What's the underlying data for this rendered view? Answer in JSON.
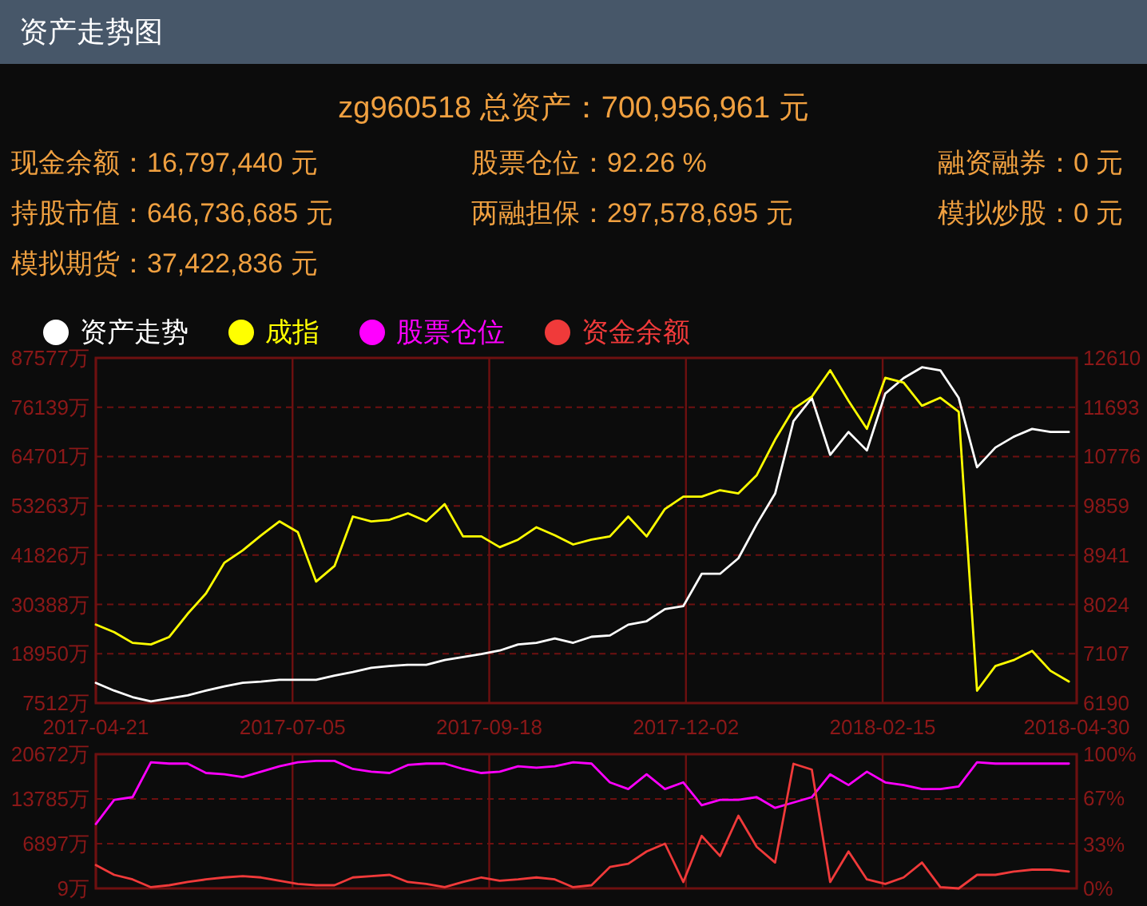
{
  "chart_data": [
    {
      "type": "other",
      "title": "资产走势图",
      "subtitle": "zg960518 总资产：700,956,961 元",
      "annotations": [
        "现金余额：16,797,440 元",
        "股票仓位：92.26 %",
        "融资融券：0 元",
        "持股市值：646,736,685 元",
        "两融担保：297,578,695 元",
        "模拟炒股：0 元",
        "模拟期货：37,422,836 元"
      ]
    },
    {
      "type": "line",
      "legend": "top left",
      "grid": true,
      "x": [
        "2017-04-21",
        "2017-04-28",
        "2017-05-05",
        "2017-05-12",
        "2017-05-19",
        "2017-05-26",
        "2017-06-02",
        "2017-06-09",
        "2017-06-16",
        "2017-06-23",
        "2017-06-30",
        "2017-07-07",
        "2017-07-14",
        "2017-07-21",
        "2017-07-28",
        "2017-08-04",
        "2017-08-11",
        "2017-08-18",
        "2017-08-25",
        "2017-09-01",
        "2017-09-08",
        "2017-09-15",
        "2017-09-22",
        "2017-09-29",
        "2017-10-06",
        "2017-10-13",
        "2017-10-20",
        "2017-10-27",
        "2017-11-03",
        "2017-11-10",
        "2017-11-17",
        "2017-11-24",
        "2017-12-01",
        "2017-12-08",
        "2017-12-15",
        "2017-12-22",
        "2017-12-29",
        "2018-01-05",
        "2018-01-12",
        "2018-01-19",
        "2018-01-26",
        "2018-02-02",
        "2018-02-09",
        "2018-02-16",
        "2018-02-23",
        "2018-03-02",
        "2018-03-09",
        "2018-03-16",
        "2018-03-23",
        "2018-03-30",
        "2018-04-06",
        "2018-04-13",
        "2018-04-20",
        "2018-04-27"
      ],
      "xlim": [
        "2017-04-21",
        "2018-04-30"
      ],
      "xticks": [
        "2017-04-21",
        "2017-07-05",
        "2017-09-18",
        "2017-12-02",
        "2018-02-15",
        "2018-04-30"
      ],
      "ylim": [
        7512,
        87577
      ],
      "yticks": [
        {
          "value": 7512,
          "label": "7512万"
        },
        {
          "value": 18950,
          "label": "18950万"
        },
        {
          "value": 30388,
          "label": "30388万"
        },
        {
          "value": 41826,
          "label": "41826万"
        },
        {
          "value": 53263,
          "label": "53263万"
        },
        {
          "value": 64701,
          "label": "64701万"
        },
        {
          "value": 76139,
          "label": "76139万"
        },
        {
          "value": 87577,
          "label": "87577万"
        }
      ],
      "y2lim": [
        6190,
        12610
      ],
      "y2ticks": [
        6190,
        7107,
        8024,
        8941,
        9859,
        10776,
        11693,
        12610
      ],
      "series": [
        {
          "name": "资产走势",
          "color": "#ffffff",
          "values": [
            12200,
            10400,
            8900,
            7900,
            8600,
            9300,
            10400,
            11400,
            12200,
            12500,
            12900,
            12900,
            12900,
            13900,
            14700,
            15700,
            16100,
            16400,
            16400,
            17500,
            18200,
            18900,
            19700,
            21100,
            21500,
            22500,
            21500,
            22900,
            23200,
            25700,
            26500,
            29300,
            30000,
            37500,
            37500,
            41100,
            49000,
            56100,
            72900,
            78300,
            65100,
            70400,
            66100,
            79300,
            82900,
            85400,
            84700,
            78300,
            62200,
            66800,
            69300,
            71100,
            70400,
            70400
          ]
        },
        {
          "name": "成指",
          "color": "#ffff00",
          "axis": "y2",
          "values": [
            7650,
            7510,
            7310,
            7280,
            7420,
            7850,
            8230,
            8800,
            9030,
            9310,
            9570,
            9370,
            8450,
            8740,
            9660,
            9570,
            9600,
            9720,
            9570,
            9890,
            9290,
            9290,
            9090,
            9230,
            9460,
            9310,
            9140,
            9230,
            9290,
            9660,
            9290,
            9800,
            10030,
            10030,
            10150,
            10090,
            10430,
            11090,
            11660,
            11890,
            12380,
            11810,
            11290,
            12240,
            12150,
            11720,
            11870,
            11610,
            6420,
            6880,
            6990,
            7160,
            6790,
            6590
          ]
        }
      ]
    },
    {
      "type": "line",
      "legend": "top left",
      "grid": true,
      "tick_labels": "y",
      "x": [
        "2017-04-21",
        "2017-04-28",
        "2017-05-05",
        "2017-05-12",
        "2017-05-19",
        "2017-05-26",
        "2017-06-02",
        "2017-06-09",
        "2017-06-16",
        "2017-06-23",
        "2017-06-30",
        "2017-07-07",
        "2017-07-14",
        "2017-07-21",
        "2017-07-28",
        "2017-08-04",
        "2017-08-11",
        "2017-08-18",
        "2017-08-25",
        "2017-09-01",
        "2017-09-08",
        "2017-09-15",
        "2017-09-22",
        "2017-09-29",
        "2017-10-06",
        "2017-10-13",
        "2017-10-20",
        "2017-10-27",
        "2017-11-03",
        "2017-11-10",
        "2017-11-17",
        "2017-11-24",
        "2017-12-01",
        "2017-12-08",
        "2017-12-15",
        "2017-12-22",
        "2017-12-29",
        "2018-01-05",
        "2018-01-12",
        "2018-01-19",
        "2018-01-26",
        "2018-02-02",
        "2018-02-09",
        "2018-02-16",
        "2018-02-23",
        "2018-03-02",
        "2018-03-09",
        "2018-03-16",
        "2018-03-23",
        "2018-03-30",
        "2018-04-06",
        "2018-04-13",
        "2018-04-20",
        "2018-04-27"
      ],
      "xlim": [
        "2017-04-21",
        "2018-04-30"
      ],
      "xticks": [
        {
          "value": "2017-04-21",
          "label": null
        },
        {
          "value": "2017-07-05",
          "label": null
        },
        {
          "value": "2017-09-18",
          "label": null
        },
        {
          "value": "2017-12-02",
          "label": null
        },
        {
          "value": "2018-02-15",
          "label": null
        },
        {
          "value": "2018-04-30",
          "label": null
        }
      ],
      "ylim": [
        9,
        20672
      ],
      "yticks": [
        {
          "value": 9,
          "label": "9万"
        },
        {
          "value": 6897,
          "label": "6897万"
        },
        {
          "value": 13785,
          "label": "13785万"
        },
        {
          "value": 20672,
          "label": "20672万"
        }
      ],
      "y2lim": [
        0,
        100
      ],
      "y2ticks": [
        {
          "value": 0,
          "label": "0%"
        },
        {
          "value": 33,
          "label": "33%"
        },
        {
          "value": 67,
          "label": "67%"
        },
        {
          "value": 100,
          "label": "100%"
        }
      ],
      "series": [
        {
          "name": "股票仓位",
          "color": "#ff00ff",
          "axis": "y2",
          "values": [
            48,
            66,
            68,
            94,
            93,
            93,
            86,
            85,
            83,
            87,
            91,
            94,
            95,
            95,
            89,
            87,
            86,
            92,
            93,
            93,
            89,
            86,
            87,
            91,
            90,
            91,
            94,
            93,
            79,
            74,
            85,
            74,
            79,
            62,
            66,
            66,
            68,
            60,
            64,
            68,
            85,
            77,
            87,
            79,
            77,
            74,
            74,
            76,
            94,
            93,
            93,
            93,
            93,
            93
          ]
        },
        {
          "name": "资金余额",
          "color": "#f03a3a",
          "values": [
            3600,
            2100,
            1400,
            200,
            500,
            1000,
            1400,
            1700,
            1900,
            1700,
            1200,
            700,
            500,
            500,
            1700,
            1900,
            2100,
            1000,
            700,
            200,
            1000,
            1700,
            1200,
            1400,
            1700,
            1400,
            200,
            500,
            3300,
            3800,
            5700,
            6900,
            1000,
            8100,
            5000,
            11200,
            6400,
            4000,
            19200,
            18300,
            1000,
            5700,
            1400,
            700,
            1700,
            4000,
            200,
            9,
            2100,
            2100,
            2600,
            2900,
            2900,
            2600
          ]
        }
      ]
    }
  ]
}
